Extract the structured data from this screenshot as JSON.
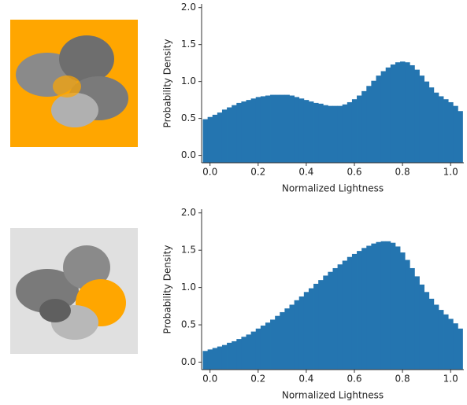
{
  "chart_data": [
    {
      "type": "histogram",
      "xlabel": "Normalized Lightness",
      "ylabel": "Probability Density",
      "color": "#2475b0",
      "bins": [
        -0.03,
        -0.01,
        0.01,
        0.03,
        0.05,
        0.07,
        0.09,
        0.11,
        0.13,
        0.15,
        0.17,
        0.19,
        0.21,
        0.23,
        0.25,
        0.27,
        0.29,
        0.31,
        0.33,
        0.35,
        0.37,
        0.39,
        0.41,
        0.43,
        0.45,
        0.47,
        0.49,
        0.51,
        0.53,
        0.55,
        0.57,
        0.59,
        0.61,
        0.63,
        0.65,
        0.67,
        0.69,
        0.71,
        0.73,
        0.75,
        0.77,
        0.79,
        0.81,
        0.83,
        0.85,
        0.87,
        0.89,
        0.91,
        0.93,
        0.95,
        0.97,
        0.99,
        1.01,
        1.03,
        1.05
      ],
      "values": [
        0.49,
        0.52,
        0.55,
        0.58,
        0.62,
        0.65,
        0.68,
        0.71,
        0.73,
        0.75,
        0.77,
        0.79,
        0.8,
        0.81,
        0.82,
        0.82,
        0.82,
        0.82,
        0.81,
        0.79,
        0.77,
        0.75,
        0.73,
        0.71,
        0.7,
        0.68,
        0.67,
        0.67,
        0.67,
        0.69,
        0.72,
        0.76,
        0.81,
        0.87,
        0.94,
        1.01,
        1.08,
        1.14,
        1.19,
        1.23,
        1.26,
        1.27,
        1.26,
        1.22,
        1.16,
        1.08,
        1.0,
        0.92,
        0.85,
        0.8,
        0.76,
        0.72,
        0.67,
        0.6
      ],
      "xlim": [
        -0.035,
        1.055
      ],
      "ylim": [
        -0.1,
        2.05
      ],
      "xticks": [
        {
          "value": 0,
          "label": "0.0"
        },
        0.2,
        0.4,
        0.6,
        0.8,
        {
          "value": 1,
          "label": "1.0"
        }
      ],
      "yticks": [
        {
          "value": 0,
          "label": "0.0"
        },
        0.5,
        {
          "value": 1,
          "label": "1.0"
        },
        1.5,
        {
          "value": 2,
          "label": "2.0"
        }
      ]
    },
    {
      "type": "histogram",
      "xlabel": "Normalized Lightness",
      "ylabel": "Probability Density",
      "color": "#2475b0",
      "bins": [
        -0.03,
        -0.01,
        0.01,
        0.03,
        0.05,
        0.07,
        0.09,
        0.11,
        0.13,
        0.15,
        0.17,
        0.19,
        0.21,
        0.23,
        0.25,
        0.27,
        0.29,
        0.31,
        0.33,
        0.35,
        0.37,
        0.39,
        0.41,
        0.43,
        0.45,
        0.47,
        0.49,
        0.51,
        0.53,
        0.55,
        0.57,
        0.59,
        0.61,
        0.63,
        0.65,
        0.67,
        0.69,
        0.71,
        0.73,
        0.75,
        0.77,
        0.79,
        0.81,
        0.83,
        0.85,
        0.87,
        0.89,
        0.91,
        0.93,
        0.95,
        0.97,
        0.99,
        1.01,
        1.03,
        1.05
      ],
      "values": [
        0.15,
        0.17,
        0.19,
        0.21,
        0.23,
        0.26,
        0.28,
        0.31,
        0.34,
        0.37,
        0.41,
        0.45,
        0.49,
        0.53,
        0.57,
        0.62,
        0.67,
        0.72,
        0.77,
        0.83,
        0.88,
        0.94,
        0.99,
        1.05,
        1.1,
        1.16,
        1.21,
        1.26,
        1.31,
        1.36,
        1.41,
        1.45,
        1.49,
        1.53,
        1.56,
        1.59,
        1.61,
        1.62,
        1.62,
        1.6,
        1.55,
        1.47,
        1.37,
        1.26,
        1.15,
        1.04,
        0.94,
        0.85,
        0.77,
        0.7,
        0.64,
        0.58,
        0.52,
        0.45
      ],
      "xlim": [
        -0.035,
        1.055
      ],
      "ylim": [
        -0.1,
        2.05
      ],
      "xticks": [
        {
          "value": 0,
          "label": "0.0"
        },
        0.2,
        0.4,
        0.6,
        0.8,
        {
          "value": 1,
          "label": "1.0"
        }
      ],
      "yticks": [
        {
          "value": 0,
          "label": "0.0"
        },
        0.5,
        {
          "value": 1,
          "label": "1.0"
        },
        1.5,
        {
          "value": 2,
          "label": "2.0"
        }
      ]
    }
  ]
}
